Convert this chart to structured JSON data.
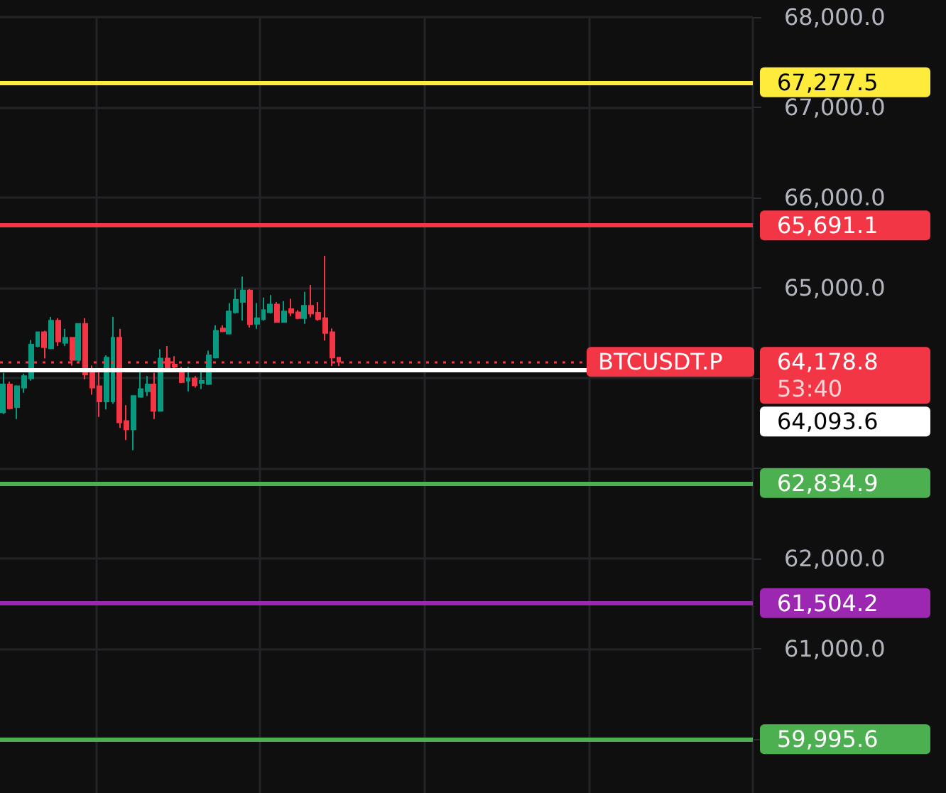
{
  "chart_data": {
    "type": "candlestick",
    "categories": [
      null,
      null,
      null,
      null,
      null,
      null,
      null,
      null,
      null,
      null,
      null,
      null,
      null,
      null,
      null,
      null,
      null,
      null,
      null,
      null,
      null,
      null,
      null,
      null,
      null,
      null,
      null,
      null,
      null,
      null,
      null,
      null,
      null,
      null,
      null,
      null,
      null,
      null,
      null,
      null,
      null,
      null,
      null,
      null,
      null,
      null,
      null,
      null,
      null,
      null,
      null,
      null,
      null,
      null,
      null,
      null,
      null,
      null,
      null,
      null,
      null,
      null,
      null,
      null,
      null,
      null,
      null,
      null,
      null,
      null,
      null,
      null,
      null,
      null,
      null,
      null,
      null,
      null,
      null,
      null,
      null,
      null,
      null,
      null,
      null,
      null,
      null,
      null,
      null,
      null,
      null,
      null,
      null,
      null,
      null,
      null,
      null,
      null,
      null,
      null,
      null,
      null,
      null,
      null,
      null,
      null,
      null,
      null,
      null,
      null
    ],
    "ohlc": [
      [
        63620,
        64057,
        63600,
        63928
      ],
      [
        63928,
        63959,
        63651,
        63662
      ],
      [
        63677,
        63918,
        63544,
        63908
      ],
      [
        63892,
        64046,
        63836,
        64021
      ],
      [
        63995,
        64421,
        63969,
        64369
      ],
      [
        64354,
        64508,
        64339,
        64508
      ],
      [
        64508,
        64523,
        64215,
        64339
      ],
      [
        64328,
        64677,
        64318,
        64636
      ],
      [
        64636,
        64662,
        64354,
        64405
      ],
      [
        64390,
        64544,
        64354,
        64446
      ],
      [
        64446,
        64446,
        64138,
        64200
      ],
      [
        64200,
        64600,
        64174,
        64600
      ],
      [
        64600,
        64662,
        63985,
        64036
      ],
      [
        64072,
        64138,
        63815,
        63892
      ],
      [
        63908,
        64087,
        63569,
        63739
      ],
      [
        63739,
        64251,
        63651,
        64226
      ],
      [
        63739,
        64677,
        63713,
        64446
      ],
      [
        64446,
        64544,
        63446,
        63508
      ],
      [
        63523,
        63698,
        63313,
        63431
      ],
      [
        63431,
        63800,
        63200,
        63800
      ],
      [
        63790,
        64082,
        63790,
        63877
      ],
      [
        63851,
        64021,
        63800,
        63928
      ],
      [
        63928,
        64057,
        63544,
        63636
      ],
      [
        63636,
        64318,
        63636,
        64215
      ],
      [
        64215,
        64354,
        64113,
        64113
      ],
      [
        64149,
        64241,
        64087,
        64123
      ],
      [
        64097,
        64123,
        63944,
        63954
      ],
      [
        63969,
        64123,
        63851,
        63995
      ],
      [
        63995,
        64021,
        63892,
        63918
      ],
      [
        63944,
        64097,
        63877,
        63969
      ],
      [
        63933,
        64303,
        63923,
        64251
      ],
      [
        64226,
        64585,
        64215,
        64523
      ],
      [
        64549,
        64585,
        64508,
        64518
      ],
      [
        64492,
        64831,
        64482,
        64738
      ],
      [
        64728,
        64985,
        64713,
        64867
      ],
      [
        64841,
        65123,
        64636,
        64969
      ],
      [
        64969,
        64985,
        64559,
        64595
      ],
      [
        64600,
        64831,
        64544,
        64662
      ],
      [
        64651,
        64892,
        64636,
        64754
      ],
      [
        64728,
        64918,
        64713,
        64815
      ],
      [
        64815,
        64841,
        64620,
        64620
      ],
      [
        64620,
        64851,
        64620,
        64738
      ],
      [
        64764,
        64877,
        64687,
        64723
      ],
      [
        64728,
        64754,
        64651,
        64662
      ],
      [
        64662,
        64954,
        64600,
        64800
      ],
      [
        64800,
        65031,
        64672,
        64713
      ],
      [
        64723,
        64841,
        64636,
        64651
      ],
      [
        64662,
        65354,
        64415,
        64497
      ],
      [
        64508,
        64549,
        64133,
        64226
      ],
      [
        64226,
        64226,
        64133,
        64178.8
      ],
      null,
      null,
      null,
      null,
      null,
      null,
      null,
      null,
      null,
      null,
      null,
      null,
      null,
      null,
      null,
      null,
      null,
      null,
      null,
      null,
      null,
      null,
      null,
      null,
      null,
      null,
      null,
      null,
      null,
      null,
      null,
      null,
      null,
      null,
      null,
      null,
      null,
      null,
      null,
      null,
      null,
      null,
      null,
      null,
      null,
      null,
      null,
      null,
      null,
      null,
      null,
      null,
      null,
      null,
      null,
      null,
      null,
      null,
      null,
      null
    ],
    "ylim": [
      59400,
      68000
    ],
    "yticks": [
      {
        "value": 60000,
        "label": null
      },
      {
        "value": 61000,
        "label": "61,000.0"
      },
      {
        "value": 62000,
        "label": "62,000.0"
      },
      {
        "value": 63000,
        "label": null
      },
      {
        "value": 64000,
        "label": null
      },
      {
        "value": 65000,
        "label": "65,000.0"
      },
      {
        "value": 66000,
        "label": "66,000.0"
      },
      {
        "value": 67000,
        "label": "67,000.0"
      },
      {
        "value": 68000,
        "label": "68,000.0"
      }
    ],
    "ref_lines": [
      {
        "axis": "y",
        "value": 67277.5,
        "label": "67,277.5",
        "color": "#ffeb3b"
      },
      {
        "axis": "y",
        "value": 65691.1,
        "label": "65,691.1",
        "color": "#f23645"
      },
      {
        "axis": "y",
        "value": 64178.8,
        "label": "64,178.8",
        "color": "#f23645",
        "line_style": "dotted"
      },
      {
        "axis": "y",
        "value": 64093.6,
        "label": "64,093.6",
        "color": "#ffffff"
      },
      {
        "axis": "y",
        "value": 62834.9,
        "label": "62,834.9",
        "color": "#4caf50"
      },
      {
        "axis": "y",
        "value": 61504.2,
        "label": "61,504.2",
        "color": "#9c27b0"
      },
      {
        "axis": "y",
        "value": 59995.6,
        "label": "59,995.6",
        "color": "#4caf50"
      }
    ],
    "annotations": [
      {
        "text": "BTCUSDT.P",
        "y": 64178.8
      },
      "53:40"
    ],
    "grid": true,
    "tick_labels": "y"
  }
}
